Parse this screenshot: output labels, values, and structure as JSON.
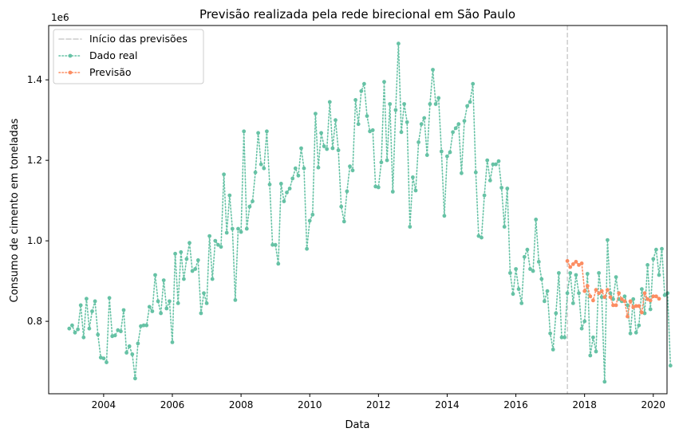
{
  "chart_data": {
    "type": "line",
    "title": "Previsão realizada pela rede birecional em São Paulo",
    "xlabel": "Data",
    "ylabel": "Consumo de cimento em toneladas",
    "y_offset_label": "1e6",
    "xlim": [
      2002.4,
      2020.4
    ],
    "ylim": [
      620000,
      1535000
    ],
    "x_ticks": [
      2004,
      2006,
      2008,
      2010,
      2012,
      2014,
      2016,
      2018,
      2020
    ],
    "x_tick_labels": [
      "2004",
      "2006",
      "2008",
      "2010",
      "2012",
      "2014",
      "2016",
      "2018",
      "2020"
    ],
    "y_ticks": [
      800000,
      1000000,
      1200000,
      1400000
    ],
    "y_tick_labels": [
      "0.8",
      "1.0",
      "1.2",
      "1.4"
    ],
    "grid": false,
    "legend_position": "top-left",
    "forecast_start": 2017.5,
    "colors": {
      "real": "#66c2a5",
      "forecast": "#fc8d62",
      "start_line": "#cccccc"
    },
    "series": [
      {
        "name": "Dado real",
        "style": "dotted-line-with-markers",
        "start": 2003.0,
        "step": 0.0833333,
        "values": [
          782000,
          790000,
          772000,
          780000,
          840000,
          760000,
          856000,
          782000,
          825000,
          850000,
          767000,
          710000,
          708000,
          698000,
          858000,
          763000,
          765000,
          778000,
          775000,
          828000,
          722000,
          738000,
          718000,
          658000,
          745000,
          788000,
          790000,
          790000,
          836000,
          825000,
          915000,
          850000,
          820000,
          902000,
          832000,
          850000,
          748000,
          968000,
          845000,
          972000,
          905000,
          955000,
          995000,
          925000,
          930000,
          952000,
          820000,
          870000,
          845000,
          1012000,
          905000,
          1000000,
          990000,
          985000,
          1165000,
          1020000,
          1113000,
          1030000,
          853000,
          1030000,
          1022000,
          1272000,
          1030000,
          1085000,
          1098000,
          1170000,
          1268000,
          1190000,
          1180000,
          1272000,
          1140000,
          990000,
          990000,
          943000,
          1142000,
          1098000,
          1120000,
          1130000,
          1155000,
          1180000,
          1162000,
          1230000,
          1180000,
          980000,
          1050000,
          1065000,
          1316000,
          1182000,
          1268000,
          1235000,
          1228000,
          1345000,
          1230000,
          1300000,
          1225000,
          1085000,
          1048000,
          1123000,
          1185000,
          1175000,
          1350000,
          1290000,
          1372000,
          1390000,
          1310000,
          1272000,
          1275000,
          1135000,
          1133000,
          1195000,
          1395000,
          1200000,
          1340000,
          1122000,
          1325000,
          1490000,
          1270000,
          1340000,
          1295000,
          1035000,
          1158000,
          1125000,
          1245000,
          1290000,
          1305000,
          1213000,
          1340000,
          1425000,
          1340000,
          1355000,
          1222000,
          1062000,
          1210000,
          1220000,
          1270000,
          1280000,
          1290000,
          1168000,
          1298000,
          1335000,
          1345000,
          1390000,
          1170000,
          1012000,
          1008000,
          1113000,
          1200000,
          1150000,
          1190000,
          1190000,
          1198000,
          1132000,
          1035000,
          1130000,
          920000,
          868000,
          930000,
          880000,
          845000,
          960000,
          978000,
          930000,
          925000,
          1053000,
          948000,
          905000,
          850000,
          875000,
          770000,
          730000,
          820000,
          920000,
          760000,
          760000,
          870000,
          920000,
          845000,
          915000,
          870000,
          782000,
          800000,
          918000,
          715000,
          760000,
          725000,
          920000,
          860000,
          650000,
          1002000,
          870000,
          855000,
          910000,
          855000,
          850000,
          862000,
          840000,
          770000,
          855000,
          772000,
          790000,
          880000,
          820000,
          940000,
          830000,
          955000,
          978000,
          915000,
          980000,
          865000,
          870000,
          690000
        ]
      },
      {
        "name": "Previsão",
        "style": "dotted-line-with-markers",
        "start": 2017.5,
        "step": 0.0833333,
        "values": [
          950000,
          935000,
          942000,
          948000,
          940000,
          944000,
          875000,
          888000,
          862000,
          852000,
          878000,
          870000,
          875000,
          860000,
          878000,
          860000,
          840000,
          840000,
          870000,
          855000,
          850000,
          812000,
          850000,
          835000,
          838000,
          838000,
          822000,
          870000,
          855000,
          852000,
          862000,
          862000,
          856000
        ]
      }
    ]
  }
}
